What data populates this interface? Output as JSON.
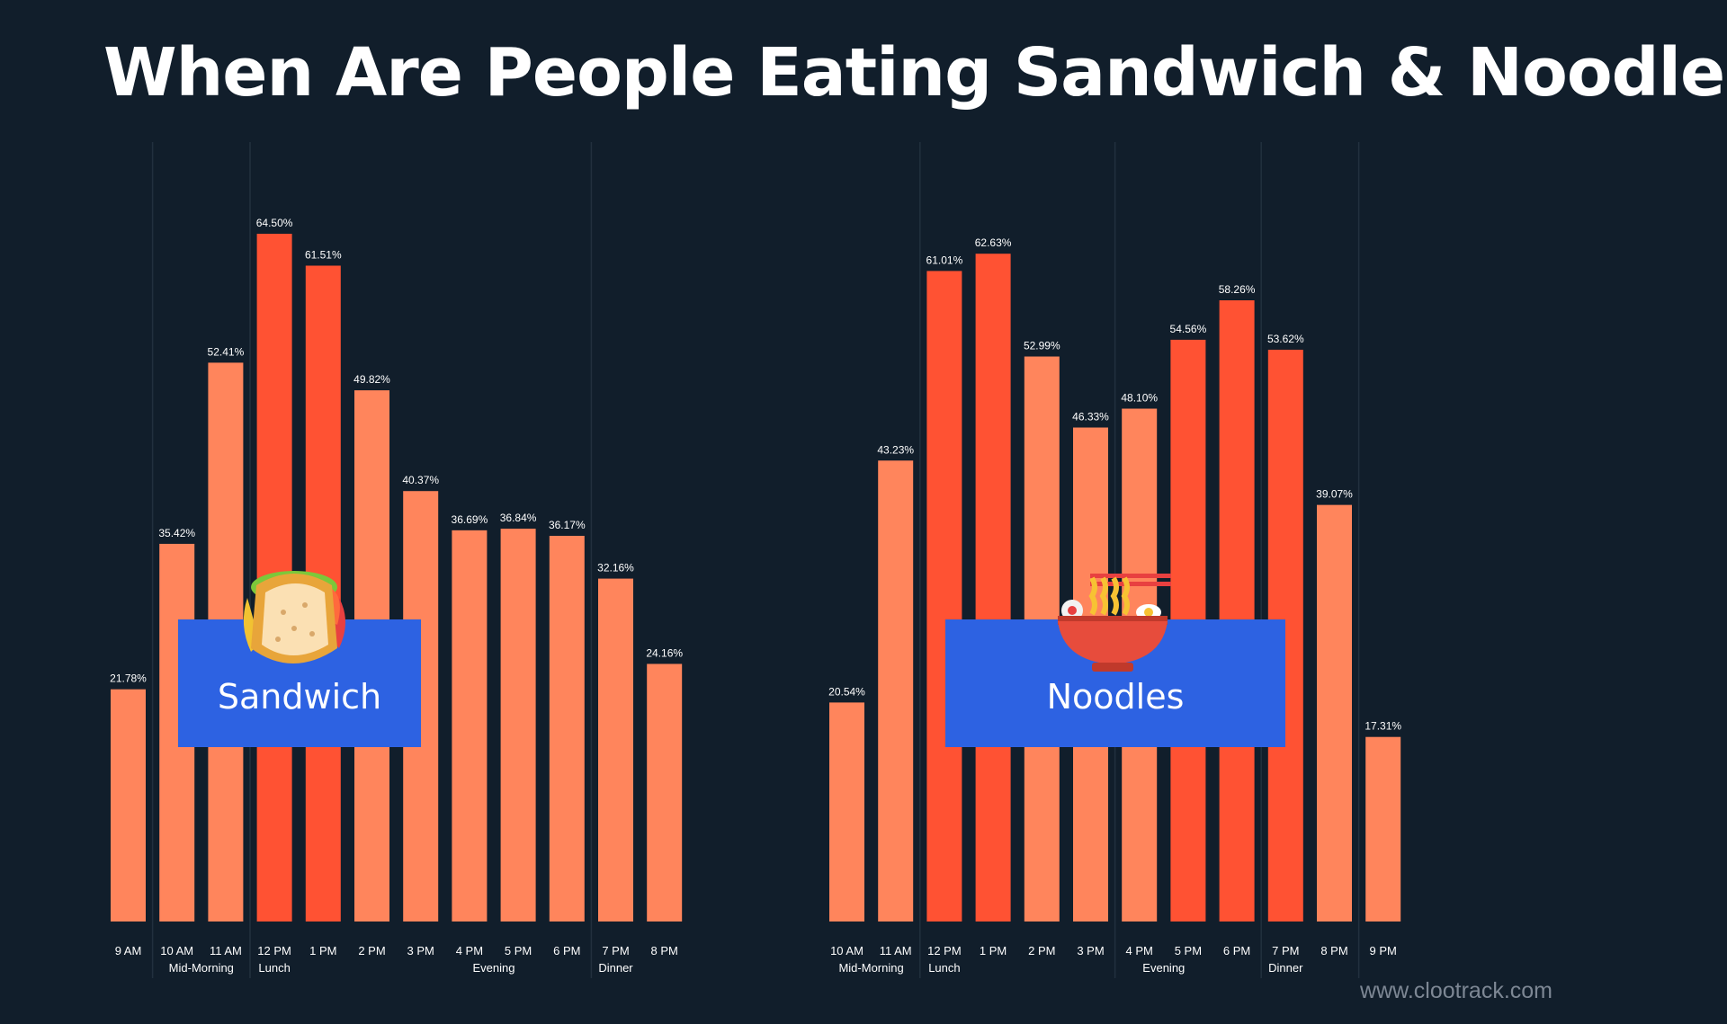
{
  "title": "When Are People Eating Sandwich & Noodles?",
  "watermark": "www.clootrack.com",
  "colors": {
    "background": "#111e2b",
    "regular_bar": "#ff855c",
    "peak_bar": "#ff5233",
    "badge": "#2d62e2",
    "divider": "#22303e"
  },
  "chart_data": [
    {
      "type": "bar",
      "label": "Sandwich",
      "icon": "sandwich-icon",
      "categories": [
        "9 AM",
        "10 AM",
        "11 AM",
        "12 PM",
        "1 PM",
        "2 PM",
        "3 PM",
        "4 PM",
        "5 PM",
        "6 PM",
        "7 PM",
        "8 PM"
      ],
      "values": [
        21.78,
        35.42,
        52.41,
        64.5,
        61.51,
        49.82,
        40.37,
        36.69,
        36.84,
        36.17,
        32.16,
        24.16
      ],
      "data_labels": [
        "21.78%",
        "35.42%",
        "52.41%",
        "64.50%",
        "61.51%",
        "49.82%",
        "40.37%",
        "36.69%",
        "36.84%",
        "36.17%",
        "32.16%",
        "24.16%"
      ],
      "highlight": [
        false,
        false,
        false,
        true,
        true,
        false,
        false,
        false,
        false,
        false,
        false,
        false
      ],
      "groups": [
        {
          "label": "Mid-Morning",
          "categories": [
            "10 AM",
            "11 AM"
          ]
        },
        {
          "label": "Lunch",
          "categories": [
            "12 PM"
          ]
        },
        {
          "label": "Evening",
          "categories": [
            "4 PM",
            "5 PM"
          ]
        },
        {
          "label": "Dinner",
          "categories": [
            "7 PM"
          ]
        }
      ],
      "dividers_after": [
        "9 AM",
        "11 AM",
        "6 PM"
      ],
      "ylim": [
        0,
        70
      ],
      "unit": "%"
    },
    {
      "type": "bar",
      "label": "Noodles",
      "icon": "noodle-bowl-icon",
      "categories": [
        "10 AM",
        "11 AM",
        "12 PM",
        "1 PM",
        "2 PM",
        "3 PM",
        "4 PM",
        "5 PM",
        "6 PM",
        "7 PM",
        "8 PM",
        "9 PM"
      ],
      "values": [
        20.54,
        43.23,
        61.01,
        62.63,
        52.99,
        46.33,
        48.1,
        54.56,
        58.26,
        53.62,
        39.07,
        17.31
      ],
      "data_labels": [
        "20.54%",
        "43.23%",
        "61.01%",
        "62.63%",
        "52.99%",
        "46.33%",
        "48.10%",
        "54.56%",
        "58.26%",
        "53.62%",
        "39.07%",
        "17.31%"
      ],
      "highlight": [
        false,
        false,
        true,
        true,
        false,
        false,
        false,
        true,
        true,
        true,
        false,
        false
      ],
      "groups": [
        {
          "label": "Mid-Morning",
          "categories": [
            "10 AM",
            "11 AM"
          ]
        },
        {
          "label": "Lunch",
          "categories": [
            "12 PM"
          ]
        },
        {
          "label": "Evening",
          "categories": [
            "4 PM",
            "5 PM"
          ]
        },
        {
          "label": "Dinner",
          "categories": [
            "7 PM"
          ]
        }
      ],
      "dividers_after": [
        "11 AM",
        "3 PM",
        "6 PM",
        "8 PM"
      ],
      "ylim": [
        0,
        70
      ],
      "unit": "%"
    }
  ]
}
